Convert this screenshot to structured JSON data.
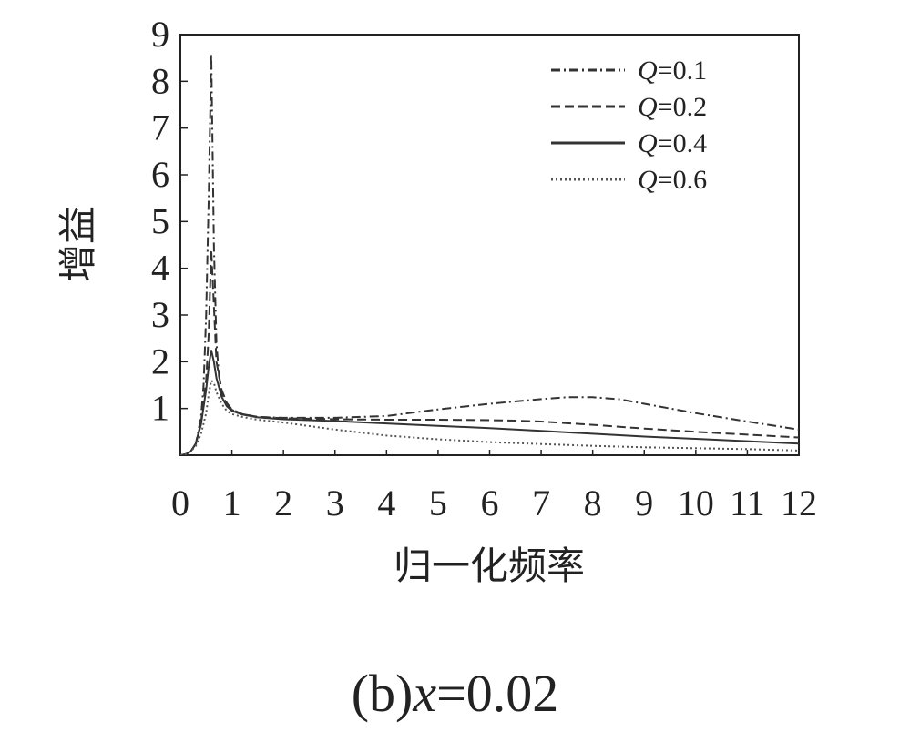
{
  "chart_data": {
    "type": "line",
    "xlabel": "归一化频率",
    "ylabel": "增益",
    "xlim": [
      0,
      12
    ],
    "ylim": [
      0,
      9
    ],
    "x_ticks": [
      "0",
      "1",
      "2",
      "3",
      "4",
      "5",
      "6",
      "7",
      "8",
      "9",
      "10",
      "11",
      "12"
    ],
    "y_ticks": [
      "1",
      "2",
      "3",
      "4",
      "5",
      "6",
      "7",
      "8",
      "9"
    ],
    "grid": false,
    "legend_position": "top-right",
    "series": [
      {
        "name": "Q=0.1",
        "q_value": "0.1",
        "line_style": "dash-dot",
        "color": "#333333",
        "x": [
          0,
          0.1,
          0.2,
          0.3,
          0.4,
          0.45,
          0.5,
          0.55,
          0.6,
          0.65,
          0.7,
          0.75,
          0.8,
          0.9,
          1.0,
          1.2,
          1.5,
          2,
          3,
          4,
          5,
          6,
          7,
          7.5,
          8,
          8.5,
          9,
          10,
          11,
          12
        ],
        "y": [
          0,
          0.02,
          0.08,
          0.25,
          0.8,
          1.5,
          3.0,
          5.5,
          8.6,
          4.5,
          2.4,
          1.7,
          1.35,
          1.08,
          0.97,
          0.88,
          0.82,
          0.8,
          0.8,
          0.84,
          0.98,
          1.1,
          1.2,
          1.24,
          1.24,
          1.2,
          1.1,
          0.9,
          0.72,
          0.55
        ]
      },
      {
        "name": "Q=0.2",
        "q_value": "0.2",
        "line_style": "dashed",
        "color": "#333333",
        "x": [
          0,
          0.1,
          0.2,
          0.3,
          0.4,
          0.5,
          0.55,
          0.6,
          0.65,
          0.7,
          0.8,
          0.9,
          1.0,
          1.2,
          1.5,
          2,
          3,
          4,
          5,
          6,
          6.5,
          7,
          8,
          9,
          10,
          11,
          12
        ],
        "y": [
          0,
          0.02,
          0.08,
          0.25,
          0.7,
          1.6,
          2.6,
          4.4,
          3.2,
          2.0,
          1.4,
          1.12,
          0.98,
          0.88,
          0.82,
          0.79,
          0.77,
          0.76,
          0.76,
          0.75,
          0.74,
          0.72,
          0.65,
          0.57,
          0.5,
          0.44,
          0.38
        ]
      },
      {
        "name": "Q=0.4",
        "q_value": "0.4",
        "line_style": "solid",
        "color": "#333333",
        "x": [
          0,
          0.1,
          0.2,
          0.3,
          0.4,
          0.5,
          0.55,
          0.6,
          0.65,
          0.7,
          0.8,
          0.9,
          1.0,
          1.2,
          1.5,
          2,
          3,
          4,
          5,
          6,
          7,
          8,
          9,
          10,
          11,
          12
        ],
        "y": [
          0,
          0.02,
          0.08,
          0.25,
          0.65,
          1.4,
          1.9,
          2.25,
          2.0,
          1.65,
          1.25,
          1.05,
          0.95,
          0.87,
          0.81,
          0.77,
          0.73,
          0.68,
          0.63,
          0.58,
          0.52,
          0.46,
          0.4,
          0.35,
          0.3,
          0.25
        ]
      },
      {
        "name": "Q=0.6",
        "q_value": "0.6",
        "line_style": "dotted",
        "color": "#555555",
        "x": [
          0,
          0.1,
          0.2,
          0.3,
          0.4,
          0.5,
          0.55,
          0.6,
          0.65,
          0.7,
          0.8,
          0.9,
          1.0,
          1.2,
          1.5,
          2,
          3,
          4,
          5,
          6,
          7,
          8,
          9,
          10,
          11,
          12
        ],
        "y": [
          0,
          0.02,
          0.08,
          0.2,
          0.45,
          0.9,
          1.3,
          1.6,
          1.55,
          1.35,
          1.1,
          0.95,
          0.88,
          0.82,
          0.76,
          0.7,
          0.55,
          0.42,
          0.34,
          0.28,
          0.24,
          0.2,
          0.17,
          0.15,
          0.13,
          0.1
        ]
      }
    ]
  },
  "caption": {
    "prefix": "(b)",
    "variable": "x",
    "suffix": "=0.02"
  }
}
